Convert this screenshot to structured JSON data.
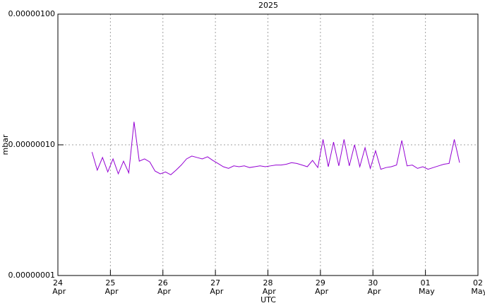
{
  "chart_data": {
    "type": "line",
    "title": "2025",
    "x_label": "UTC",
    "y_label": "mbar",
    "log_y": true,
    "grid": true,
    "x": [
      0.65,
      0.75,
      0.85,
      0.95,
      1.05,
      1.15,
      1.25,
      1.35,
      1.45,
      1.55,
      1.65,
      1.75,
      1.85,
      1.95,
      2.05,
      2.15,
      2.25,
      2.35,
      2.45,
      2.55,
      2.65,
      2.75,
      2.85,
      2.95,
      3.05,
      3.15,
      3.25,
      3.35,
      3.45,
      3.55,
      3.65,
      3.75,
      3.85,
      3.95,
      4.05,
      4.15,
      4.25,
      4.35,
      4.45,
      4.55,
      4.65,
      4.75,
      4.85,
      4.95,
      5.05,
      5.15,
      5.25,
      5.35,
      5.45,
      5.55,
      5.65,
      5.75,
      5.85,
      5.95,
      6.05,
      6.15,
      6.25,
      6.35,
      6.45,
      6.55,
      6.65,
      6.75,
      6.85,
      6.95,
      7.05,
      7.15,
      7.25,
      7.35,
      7.45,
      7.55,
      7.65
    ],
    "series": [
      {
        "color": "#9400d3",
        "values": [
          8.8e-08,
          6.4e-08,
          8e-08,
          6.2e-08,
          7.8e-08,
          6e-08,
          7.5e-08,
          6.1e-08,
          1.5e-07,
          7.5e-08,
          7.8e-08,
          7.4e-08,
          6.3e-08,
          6e-08,
          6.2e-08,
          5.9e-08,
          6.4e-08,
          7e-08,
          7.8e-08,
          8.2e-08,
          8e-08,
          7.8e-08,
          8.1e-08,
          7.6e-08,
          7.2e-08,
          6.8e-08,
          6.6e-08,
          6.9e-08,
          6.8e-08,
          6.9e-08,
          6.7e-08,
          6.8e-08,
          6.9e-08,
          6.8e-08,
          6.9e-08,
          7e-08,
          7e-08,
          7.1e-08,
          7.3e-08,
          7.2e-08,
          7e-08,
          6.8e-08,
          7.6e-08,
          6.7e-08,
          1.1e-07,
          6.8e-08,
          1.05e-07,
          6.9e-08,
          1.1e-07,
          6.9e-08,
          1e-07,
          6.8e-08,
          9.5e-08,
          6.6e-08,
          9e-08,
          6.5e-08,
          6.7e-08,
          6.8e-08,
          7e-08,
          1.08e-07,
          6.9e-08,
          7e-08,
          6.6e-08,
          6.8e-08,
          6.5e-08,
          6.7e-08,
          6.9e-08,
          7.1e-08,
          7.2e-08,
          1.1e-07,
          7.3e-08
        ]
      }
    ],
    "xlim": [
      0,
      8
    ],
    "xticks": [
      {
        "value": 0,
        "label": "24 Apr"
      },
      {
        "value": 1,
        "label": "25 Apr"
      },
      {
        "value": 2,
        "label": "26 Apr"
      },
      {
        "value": 3,
        "label": "27 Apr"
      },
      {
        "value": 4,
        "label": "28 Apr"
      },
      {
        "value": 5,
        "label": "29 Apr"
      },
      {
        "value": 6,
        "label": "30 Apr"
      },
      {
        "value": 7,
        "label": "01 May"
      },
      {
        "value": 8,
        "label": "02 May"
      }
    ],
    "ylim": [
      1e-08,
      1e-06
    ],
    "yticks": [
      {
        "value": 1e-08,
        "label": "0.00000001"
      },
      {
        "value": 1e-07,
        "label": "0.00000010"
      },
      {
        "value": 1e-06,
        "label": "0.00000100"
      }
    ]
  }
}
